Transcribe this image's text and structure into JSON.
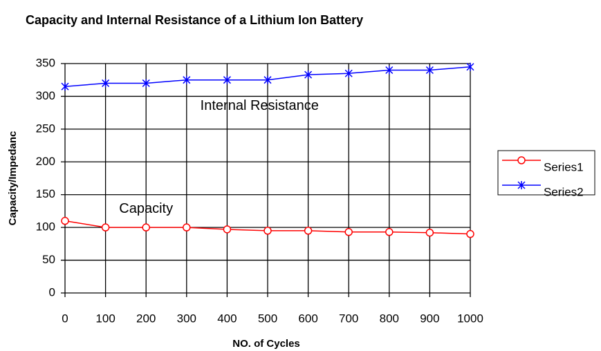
{
  "chart_data": {
    "type": "line",
    "title": "Capacity and Internal Resistance of a Lithium Ion Battery",
    "x_label": "NO. of Cycles",
    "y_label": "Capacity/Impedanc",
    "x": [
      0,
      100,
      200,
      300,
      400,
      500,
      600,
      700,
      800,
      900,
      1000
    ],
    "series": [
      {
        "name": "Series1",
        "color": "#ff0000",
        "marker": "circle",
        "values": [
          110,
          100,
          100,
          100,
          97,
          95,
          95,
          93,
          93,
          92,
          90
        ]
      },
      {
        "name": "Series2",
        "color": "#0000ff",
        "marker": "star",
        "values": [
          315,
          320,
          320,
          325,
          325,
          325,
          333,
          335,
          340,
          340,
          345
        ]
      }
    ],
    "annotations": [
      {
        "text": "Internal Resistance",
        "x": 480,
        "y": 285
      },
      {
        "text": "Capacity",
        "x": 200,
        "y": 128
      }
    ],
    "xlim": [
      0,
      1000
    ],
    "xticks": [
      0,
      100,
      200,
      300,
      400,
      500,
      600,
      700,
      800,
      900,
      1000
    ],
    "ylim": [
      0,
      350
    ],
    "yticks": [
      0,
      50,
      100,
      150,
      200,
      250,
      300,
      350
    ],
    "grid": true,
    "legend": "right"
  }
}
